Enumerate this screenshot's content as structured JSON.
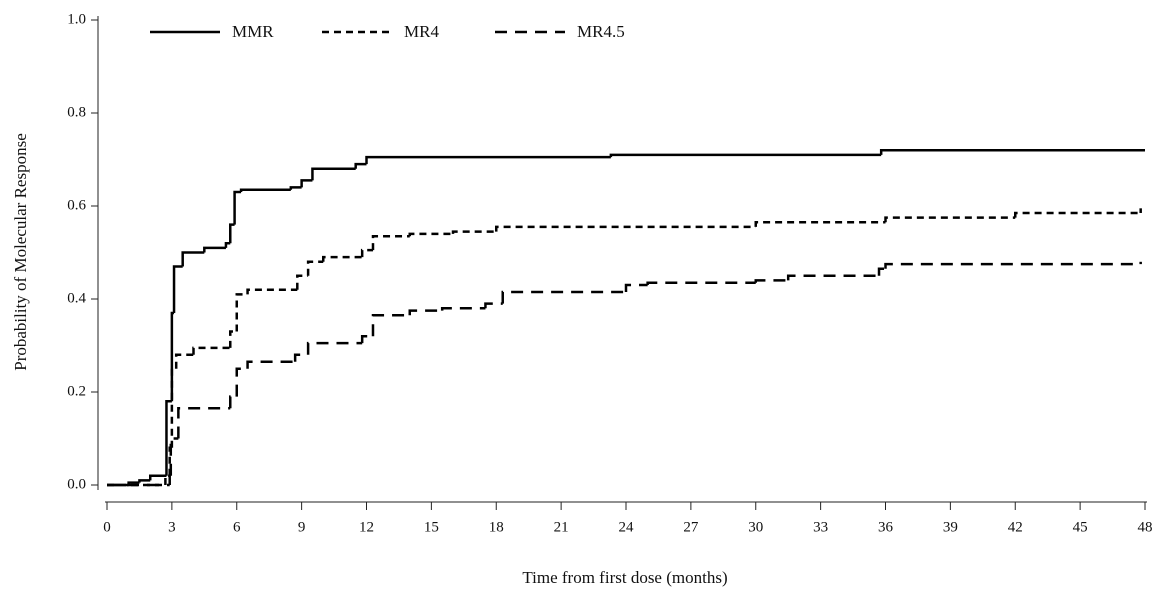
{
  "chart_data": {
    "type": "line",
    "step": true,
    "x_label": "Time from first dose (months)",
    "y_label": "Probability of Molecular Response",
    "xlim": [
      0,
      48
    ],
    "xticks": [
      0,
      3,
      6,
      9,
      12,
      15,
      18,
      21,
      24,
      27,
      30,
      33,
      36,
      39,
      42,
      45,
      48
    ],
    "ylim": [
      0,
      1
    ],
    "yticks": [
      {
        "value": 0,
        "label": "0.0"
      },
      0.2,
      0.4,
      0.6,
      0.8,
      {
        "value": 1,
        "label": "1.0"
      }
    ],
    "legend": "top-left",
    "series": [
      {
        "name": "MMR",
        "color": "#000000",
        "dash": "none",
        "x": [
          0,
          1.0,
          1.5,
          2.0,
          2.75,
          3.0,
          3.1,
          3.5,
          4.5,
          5.5,
          5.7,
          5.9,
          6.2,
          8.5,
          9.0,
          9.5,
          11.5,
          12.0,
          23.3,
          35.8,
          48
        ],
        "values": [
          0,
          0.005,
          0.01,
          0.02,
          0.18,
          0.37,
          0.47,
          0.5,
          0.51,
          0.52,
          0.56,
          0.63,
          0.635,
          0.64,
          0.655,
          0.68,
          0.69,
          0.705,
          0.71,
          0.72,
          0.72
        ]
      },
      {
        "name": "MR4",
        "color": "#000000",
        "dash": "7,5",
        "x": [
          0,
          2.7,
          2.9,
          3.0,
          3.2,
          4.0,
          5.7,
          6.0,
          6.5,
          8.8,
          9.3,
          10.0,
          11.8,
          12.3,
          14.0,
          16.0,
          18.0,
          30.0,
          36.0,
          42.0,
          47.8
        ],
        "values": [
          0,
          0.02,
          0.08,
          0.25,
          0.28,
          0.295,
          0.33,
          0.41,
          0.42,
          0.45,
          0.48,
          0.49,
          0.505,
          0.535,
          0.54,
          0.545,
          0.555,
          0.565,
          0.575,
          0.585,
          0.595
        ]
      },
      {
        "name": "MR4.5",
        "color": "#000000",
        "dash": "12,8",
        "x": [
          0,
          2.9,
          2.95,
          3.3,
          5.7,
          6.0,
          6.5,
          8.7,
          9.3,
          11.8,
          12.3,
          14.0,
          15.5,
          17.5,
          18.3,
          24.0,
          25.0,
          30.0,
          31.5,
          35.7,
          36.0,
          47.8
        ],
        "values": [
          0,
          0.02,
          0.1,
          0.165,
          0.19,
          0.25,
          0.265,
          0.28,
          0.305,
          0.32,
          0.365,
          0.375,
          0.38,
          0.39,
          0.415,
          0.43,
          0.435,
          0.44,
          0.45,
          0.465,
          0.475,
          0.48
        ]
      }
    ]
  }
}
